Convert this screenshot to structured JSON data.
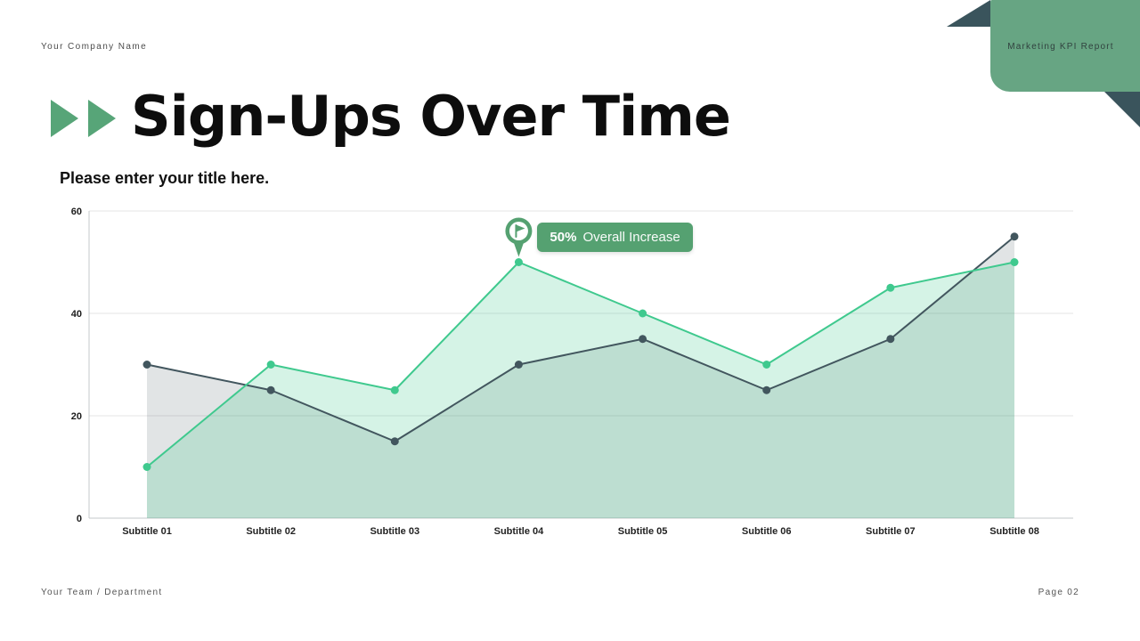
{
  "header": {
    "company_name": "Your Company Name",
    "ribbon_label": "Marketing KPI Report"
  },
  "title": {
    "text": "Sign-Ups Over Time",
    "subtitle": "Please enter your title here."
  },
  "footer": {
    "left": "Your Team / Department",
    "right": "Page 02"
  },
  "colors": {
    "accent_green": "#55a171",
    "ribbon_green": "#67a583",
    "arrow_green": "#57a578",
    "dark_teal": "#3a545c",
    "line_green": "#3fc98e",
    "line_dark": "#42565e",
    "fill_green": "rgba(62,202,142,0.22)",
    "fill_dark": "rgba(66,86,94,0.16)",
    "grid": "#e4e4e4",
    "axis": "#c5c9cb"
  },
  "chart_data": {
    "type": "area",
    "title": "",
    "xlabel": "",
    "ylabel": "",
    "grid": true,
    "legend_position": "none",
    "categories": [
      "Subtitle 01",
      "Subtitle 02",
      "Subtitle 03",
      "Subtitle 04",
      "Subtitle 05",
      "Subtitle 06",
      "Subtitle 07",
      "Subtitle 08"
    ],
    "series": [
      {
        "name": "dark-slate-series",
        "color": "#42565e",
        "fill": "rgba(66,86,94,0.16)",
        "values": [
          30,
          25,
          15,
          30,
          35,
          25,
          35,
          55
        ]
      },
      {
        "name": "green-series",
        "color": "#3fc98e",
        "fill": "rgba(62,202,142,0.22)",
        "values": [
          10,
          30,
          25,
          50,
          40,
          30,
          45,
          50
        ]
      }
    ],
    "ylim": [
      0,
      60
    ],
    "yticks": [
      0,
      20,
      40,
      60
    ],
    "annotation": {
      "badge_value": "50%",
      "badge_label": "Overall Increase",
      "anchor_series": 1,
      "anchor_index": 3
    }
  }
}
